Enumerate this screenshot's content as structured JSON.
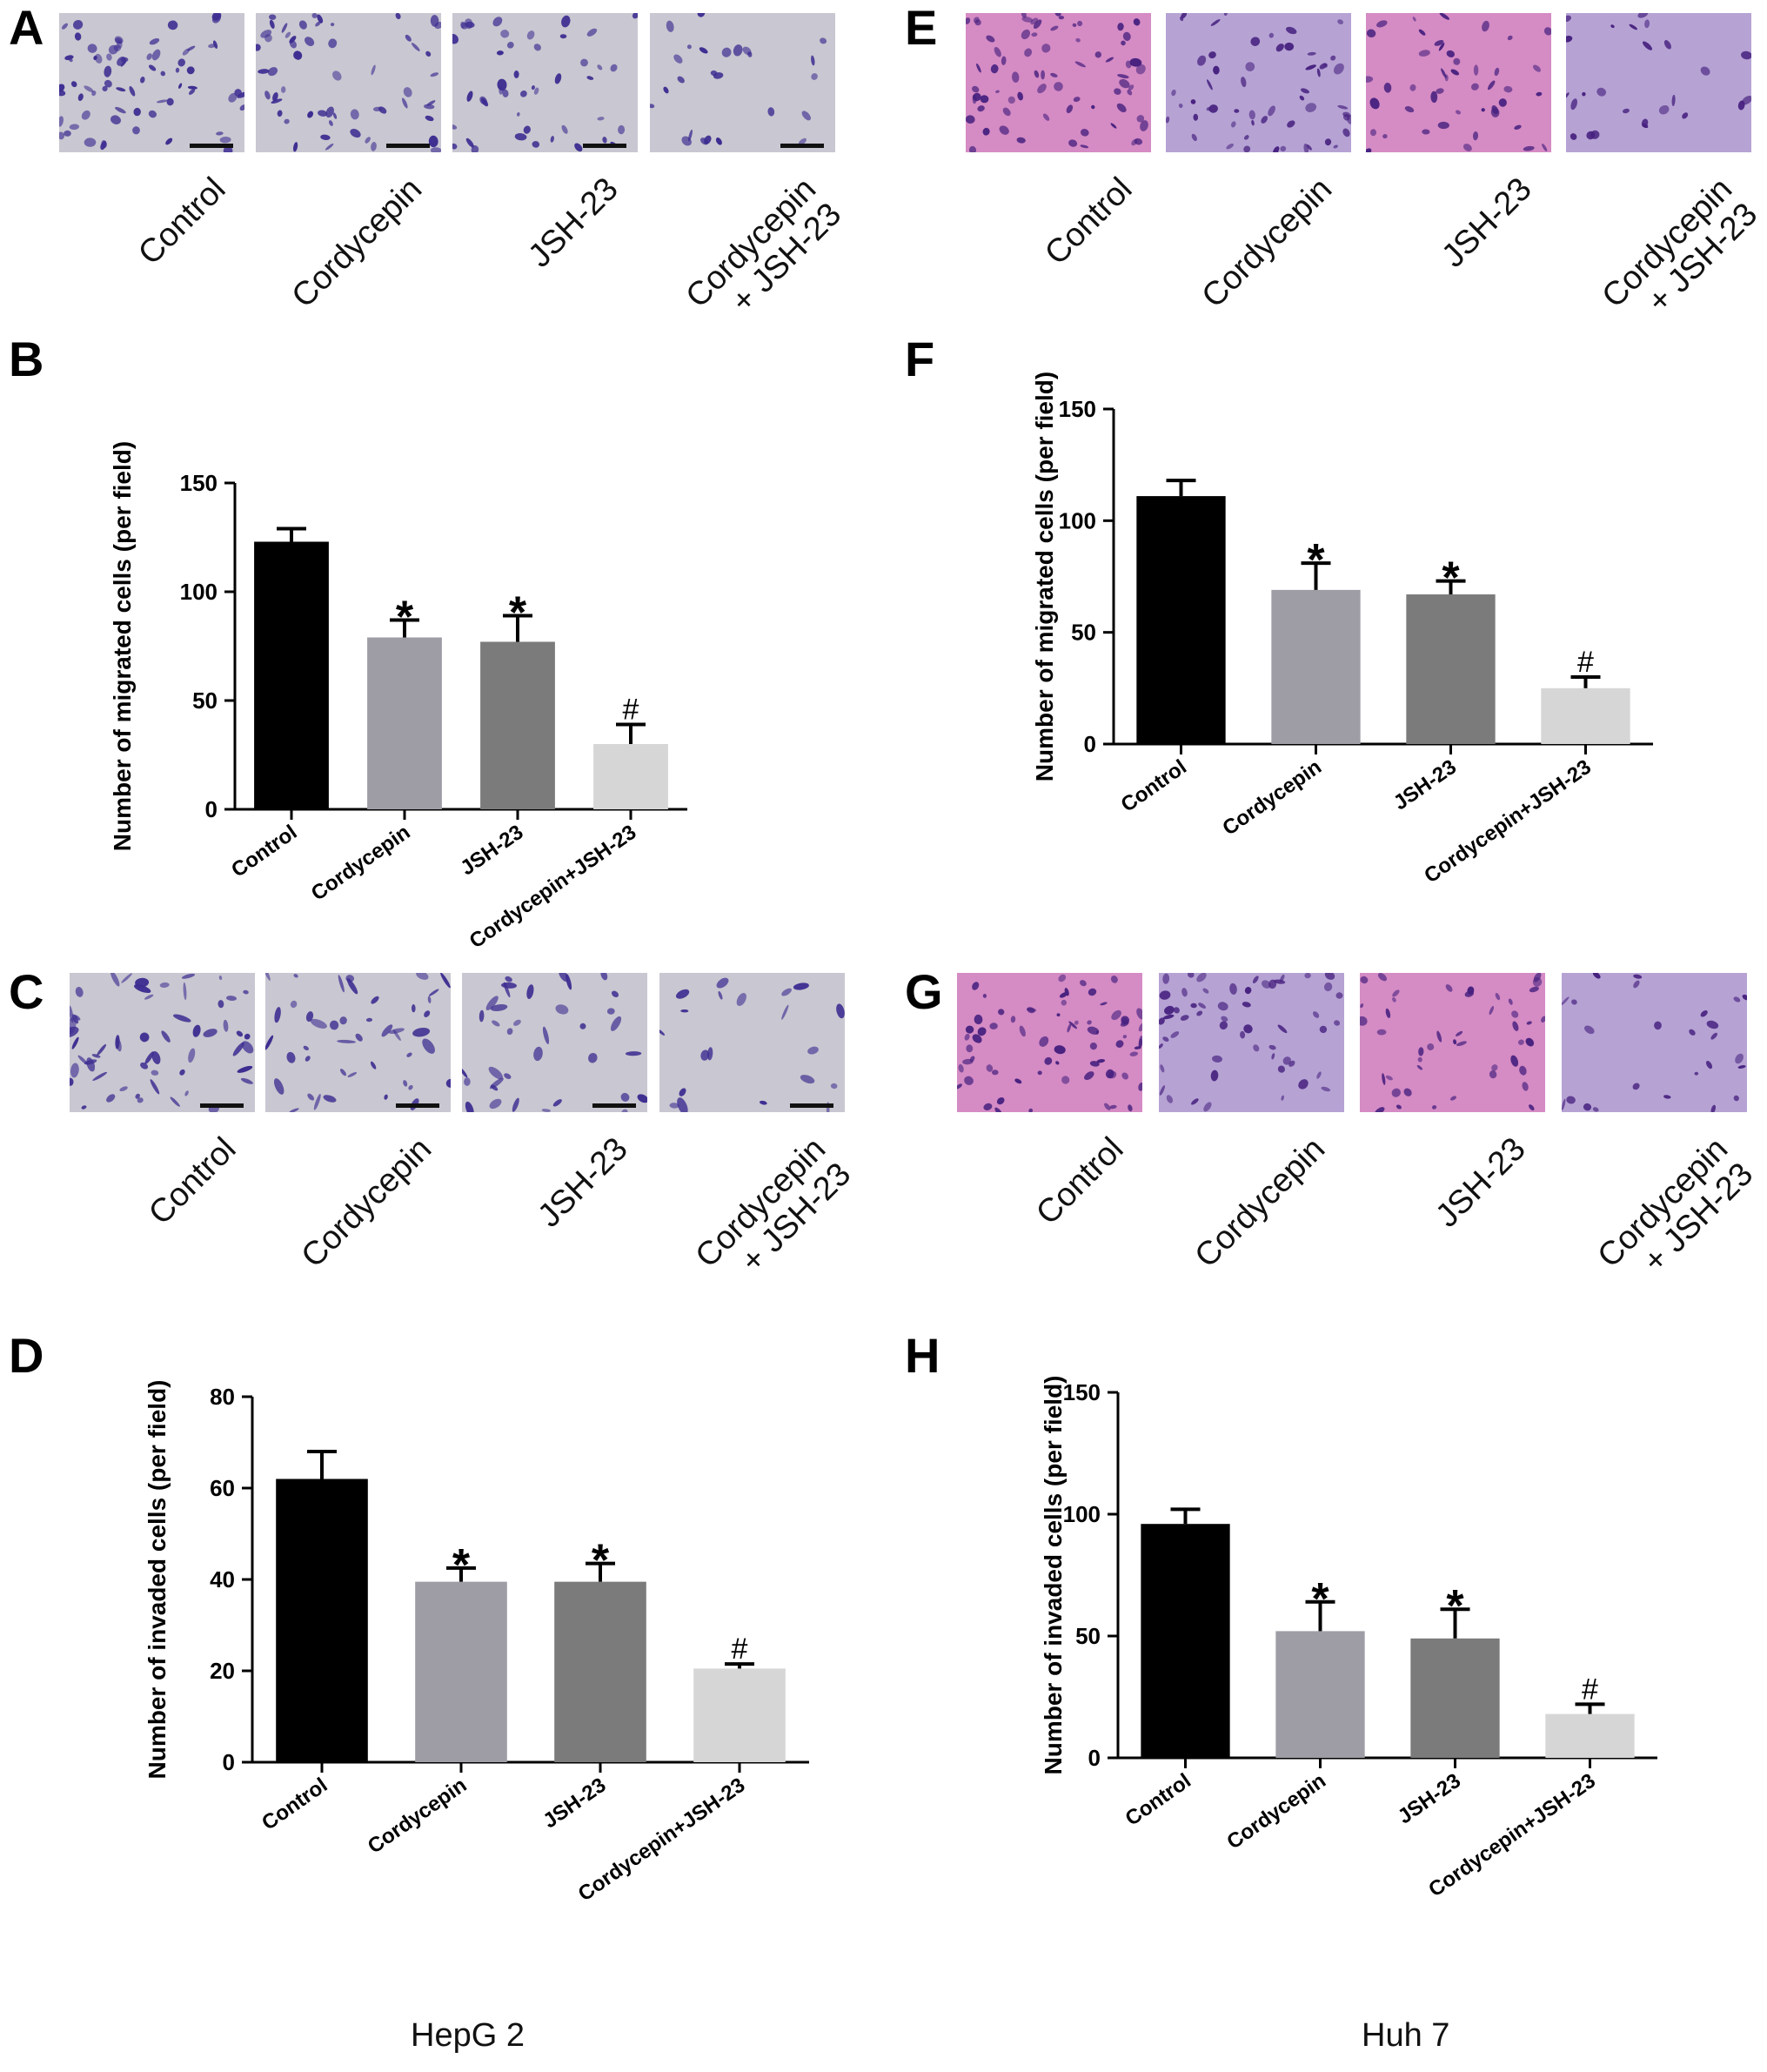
{
  "panel_letters": [
    "A",
    "B",
    "C",
    "D",
    "E",
    "F",
    "G",
    "H"
  ],
  "image_labels": {
    "hep_migration": [
      "Control",
      "Cordycepin",
      "JSH-23",
      "Cordycepin\n+ JSH-23"
    ],
    "hep_invasion": [
      "Control",
      "Cordycepin",
      "JSH-23",
      "Cordycepin\n+ JSH-23"
    ],
    "huh_migration": [
      "Control",
      "Cordycepin",
      "JSH-23",
      "Cordycepin\n+ JSH-23"
    ],
    "huh_invasion": [
      "Control",
      "Cordycepin",
      "JSH-23",
      "Cordycepin\n+ JSH-23"
    ]
  },
  "micrograph_colors": {
    "hep_bg": "#c9c7d1",
    "hep_cell": "#3d2d91",
    "huh_bg_pink": "#d58bc4",
    "huh_bg_lilac": "#b6a3d4",
    "huh_cell": "#47217f"
  },
  "cell_lines": [
    "HepG 2",
    "Huh 7"
  ],
  "bar_colors": [
    "#000000",
    "#9e9da5",
    "#7b7b7b",
    "#d6d6d6"
  ],
  "chart_data": [
    {
      "panel": "B",
      "type": "bar",
      "categories": [
        "Control",
        "Cordycepin",
        "JSH-23",
        "Cordycepin+JSH-23"
      ],
      "values": [
        123,
        79,
        77,
        30
      ],
      "errors": [
        6,
        8,
        12,
        9
      ],
      "markers": [
        "",
        "*",
        "*",
        "#"
      ],
      "ylabel": "Number of migrated cells (per field)",
      "ylim": [
        0,
        150
      ],
      "yticks": [
        0,
        50,
        100,
        150
      ]
    },
    {
      "panel": "D",
      "type": "bar",
      "categories": [
        "Control",
        "Cordycepin",
        "JSH-23",
        "Cordycepin+JSH-23"
      ],
      "values": [
        62,
        39.5,
        39.5,
        20.5
      ],
      "errors": [
        6,
        3,
        4,
        1
      ],
      "markers": [
        "",
        "*",
        "*",
        "#"
      ],
      "ylabel": "Number of invaded cells (per field)",
      "ylim": [
        0,
        80
      ],
      "yticks": [
        0,
        20,
        40,
        60,
        80
      ]
    },
    {
      "panel": "F",
      "type": "bar",
      "categories": [
        "Control",
        "Cordycepin",
        "JSH-23",
        "Cordycepin+JSH-23"
      ],
      "values": [
        111,
        69,
        67,
        25
      ],
      "errors": [
        7,
        12,
        6,
        5
      ],
      "markers": [
        "",
        "*",
        "*",
        "#"
      ],
      "ylabel": "Number of migrated cells (per field)",
      "ylim": [
        0,
        150
      ],
      "yticks": [
        0,
        50,
        100,
        150
      ]
    },
    {
      "panel": "H",
      "type": "bar",
      "categories": [
        "Control",
        "Cordycepin",
        "JSH-23",
        "Cordycepin+JSH-23"
      ],
      "values": [
        96,
        52,
        49,
        18
      ],
      "errors": [
        6,
        12,
        12,
        4
      ],
      "markers": [
        "",
        "*",
        "*",
        "#"
      ],
      "ylabel": "Number of invaded cells (per field)",
      "ylim": [
        0,
        150
      ],
      "yticks": [
        0,
        50,
        100,
        150
      ]
    }
  ]
}
